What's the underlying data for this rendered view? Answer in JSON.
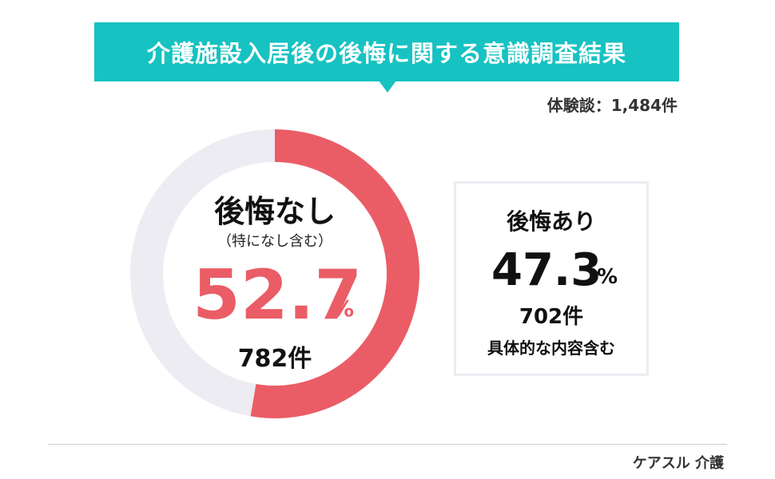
{
  "header": {
    "title": "介護施設入居後の後悔に関する意識調査結果",
    "total_label": "体験談：1,484件"
  },
  "chart_data": {
    "type": "pie",
    "title": "介護施設入居後の後悔に関する意識調査結果",
    "total": "1,484件",
    "slices": [
      {
        "label": "後悔なし",
        "note": "（特になし含む）",
        "percent": 52.7,
        "percent_text": "52.7",
        "unit": "%",
        "count": "782件",
        "color": "#ea5d66"
      },
      {
        "label": "後悔あり",
        "note": "具体的な内容含む",
        "percent": 47.3,
        "percent_text": "47.3",
        "unit": "%",
        "count": "702件",
        "color": "#ececf2"
      }
    ]
  },
  "footer": {
    "brand": "ケアスル 介護"
  }
}
